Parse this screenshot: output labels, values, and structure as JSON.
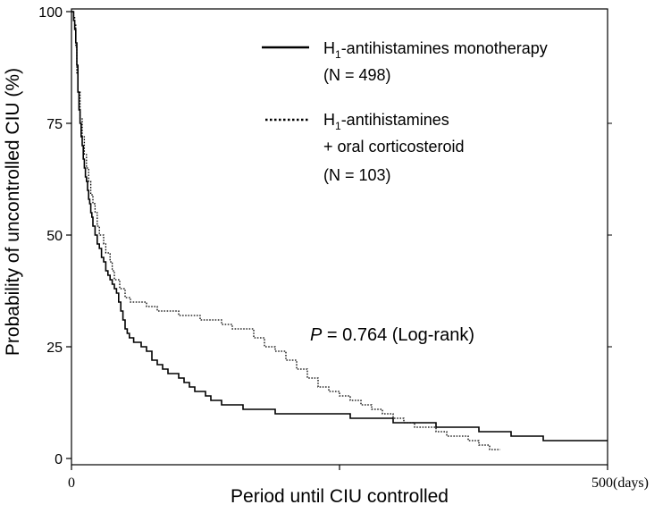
{
  "chart_data": {
    "type": "line",
    "step": true,
    "xlabel": "Period until CIU controlled",
    "ylabel": "Probability of uncontrolled CIU (%)",
    "xlim": [
      0,
      500
    ],
    "ylim": [
      0,
      100
    ],
    "x_ticks": [
      "0",
      "500(days)"
    ],
    "x_tick_values": [
      0,
      500
    ],
    "y_ticks": [
      "0",
      "25",
      "50",
      "75",
      "100"
    ],
    "y_tick_values": [
      0,
      25,
      50,
      75,
      100
    ],
    "grid": false,
    "legend_position": "top-right",
    "annotation": {
      "italic": "P",
      "rest": " = 0.764 (Log-rank)"
    },
    "series": [
      {
        "name": "H1-antihistamines monotherapy",
        "name_parts": [
          "H",
          "1",
          "-antihistamines monotherapy"
        ],
        "n_label": "(N = 498)",
        "style": "solid",
        "color": "#000000",
        "x": [
          0,
          2,
          3,
          4,
          5,
          6,
          7,
          8,
          9,
          10,
          11,
          12,
          13,
          14,
          15,
          16,
          17,
          18,
          19,
          20,
          22,
          24,
          26,
          28,
          30,
          32,
          34,
          36,
          38,
          40,
          42,
          44,
          46,
          48,
          50,
          52,
          54,
          56,
          58,
          60,
          65,
          70,
          75,
          80,
          85,
          90,
          95,
          100,
          105,
          110,
          115,
          120,
          125,
          130,
          140,
          150,
          160,
          170,
          180,
          190,
          200,
          210,
          220,
          230,
          240,
          260,
          280,
          300,
          310,
          320,
          340,
          360,
          380,
          390,
          400,
          410,
          420,
          430,
          440,
          460,
          480,
          500
        ],
        "y": [
          100,
          98,
          96,
          93,
          88,
          82,
          78,
          75,
          72,
          70,
          67,
          65,
          63,
          62,
          60,
          58,
          57,
          55,
          54,
          52,
          50,
          48,
          47,
          45,
          44,
          42,
          41,
          40,
          39,
          38,
          37,
          35,
          33,
          31,
          29,
          28,
          27,
          27,
          26,
          26,
          25,
          24,
          22,
          21,
          20,
          19,
          19,
          18,
          17,
          16,
          15,
          15,
          14,
          13,
          12,
          12,
          11,
          11,
          11,
          10,
          10,
          10,
          10,
          10,
          10,
          9,
          9,
          8,
          8,
          8,
          7,
          7,
          6,
          6,
          6,
          5,
          5,
          5,
          4,
          4,
          4,
          4
        ]
      },
      {
        "name": "H1-antihistamines + oral corticosteroid",
        "name_parts": [
          "H",
          "1",
          "-antihistamines",
          "+ oral corticosteroid"
        ],
        "n_label": "(N = 103)",
        "style": "dotted",
        "color": "#000000",
        "x": [
          0,
          2,
          3,
          4,
          5,
          6,
          8,
          10,
          12,
          14,
          16,
          18,
          20,
          22,
          24,
          26,
          28,
          30,
          32,
          34,
          36,
          38,
          40,
          45,
          50,
          55,
          60,
          70,
          80,
          90,
          100,
          110,
          120,
          130,
          140,
          150,
          160,
          170,
          180,
          190,
          200,
          210,
          220,
          230,
          240,
          250,
          260,
          270,
          280,
          290,
          300,
          310,
          320,
          330,
          340,
          350,
          360,
          370,
          380,
          390,
          400
        ],
        "y": [
          100,
          99,
          97,
          92,
          86,
          82,
          76,
          72,
          68,
          65,
          62,
          59,
          57,
          55,
          52,
          50,
          50,
          48,
          46,
          46,
          44,
          42,
          40,
          38,
          36,
          35,
          35,
          34,
          33,
          33,
          32,
          32,
          31,
          31,
          30,
          29,
          29,
          27,
          25,
          24,
          22,
          20,
          18,
          16,
          15,
          14,
          13,
          12,
          11,
          10,
          9,
          8,
          7,
          7,
          6,
          5,
          5,
          4,
          3,
          2,
          2
        ]
      }
    ]
  }
}
